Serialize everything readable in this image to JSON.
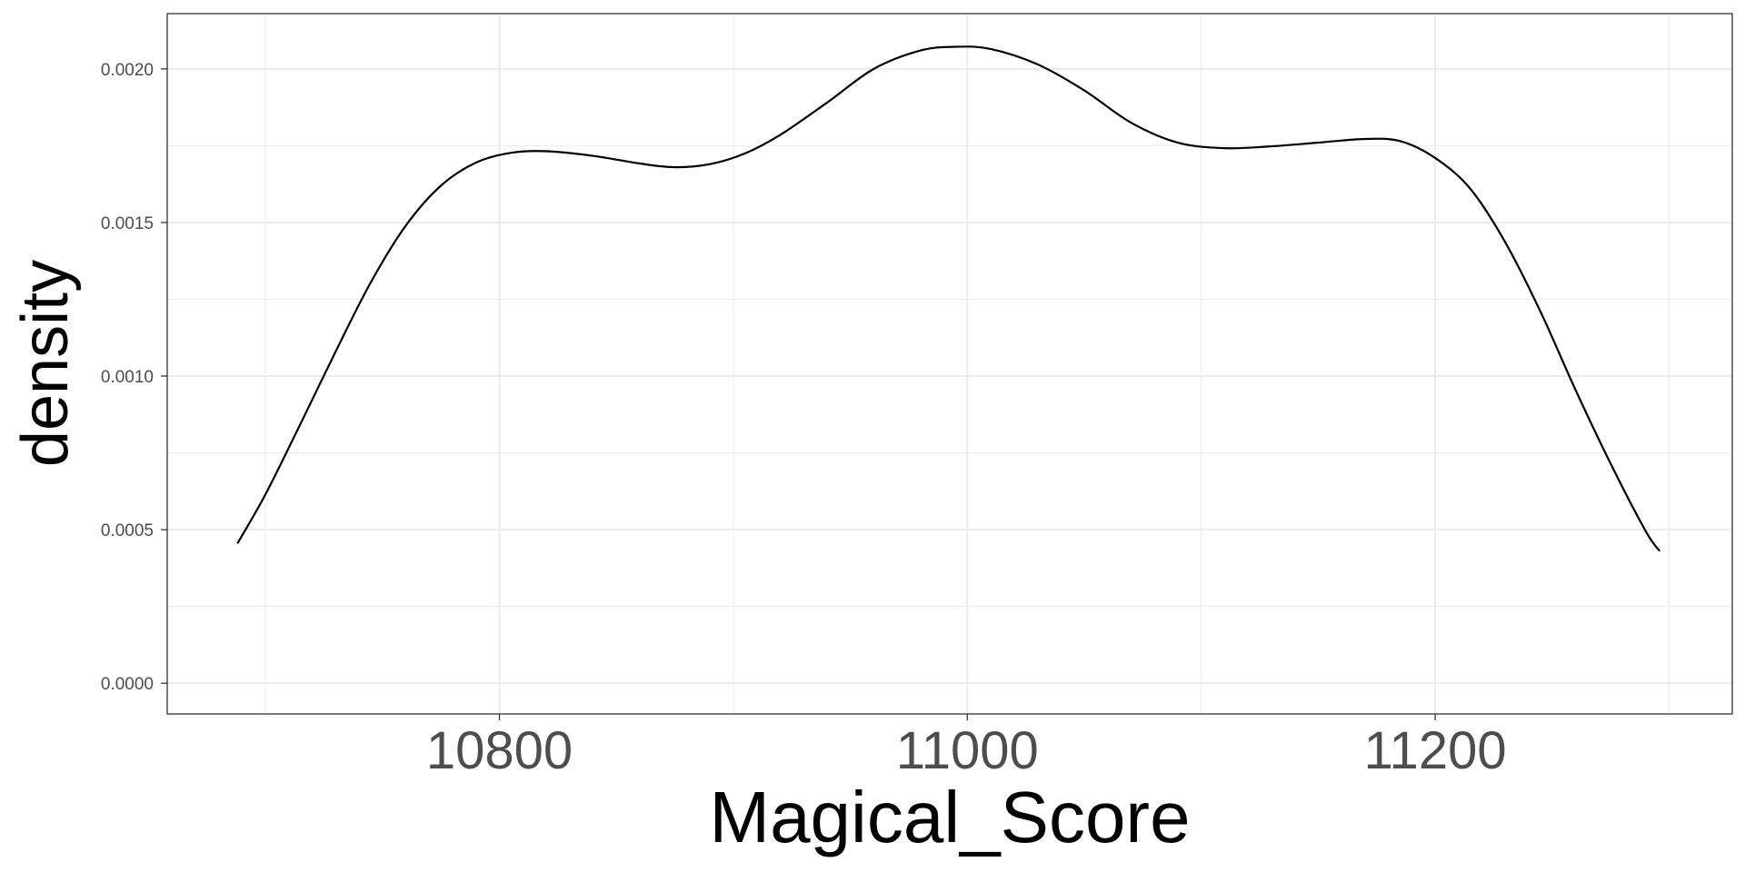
{
  "chart_data": {
    "type": "line",
    "title": "",
    "xlabel": "Magical_Score",
    "ylabel": "density",
    "xlim": [
      10658,
      11327
    ],
    "ylim": [
      -0.0001,
      0.00218
    ],
    "x_ticks": [
      10800,
      11000,
      11200
    ],
    "x_tick_labels": [
      "10800",
      "11000",
      "11200"
    ],
    "x_minor_ticks": [
      10700,
      10900,
      11100,
      11300
    ],
    "y_ticks": [
      0,
      0.0005,
      0.001,
      0.0015,
      0.002
    ],
    "y_tick_labels": [
      "0.0000",
      "0.0005",
      "0.0010",
      "0.0015",
      "0.0020"
    ],
    "y_minor_ticks": [
      0.00025,
      0.00075,
      0.00125,
      0.00175
    ],
    "grid": true,
    "legend": "none",
    "line_color": "#000000",
    "series": [
      {
        "x": [
          10688,
          10700,
          10715,
          10730,
          10745,
          10760,
          10775,
          10790,
          10805,
          10820,
          10840,
          10860,
          10875,
          10890,
          10905,
          10920,
          10940,
          10960,
          10980,
          10995,
          11010,
          11030,
          11050,
          11070,
          11090,
          11110,
          11130,
          11150,
          11170,
          11185,
          11200,
          11215,
          11230,
          11245,
          11260,
          11275,
          11290,
          11296
        ],
        "y": [
          0.000455,
          0.000615,
          0.000845,
          0.00108,
          0.001305,
          0.00149,
          0.00162,
          0.001695,
          0.001727,
          0.001732,
          0.001717,
          0.001692,
          0.00168,
          0.00169,
          0.001725,
          0.001785,
          0.00189,
          0.002,
          0.00206,
          0.002072,
          0.002065,
          0.002015,
          0.00193,
          0.001825,
          0.00176,
          0.001742,
          0.001748,
          0.00176,
          0.001772,
          0.001765,
          0.00171,
          0.00161,
          0.001435,
          0.00121,
          0.000955,
          0.000715,
          0.000495,
          0.00043
        ]
      }
    ]
  }
}
